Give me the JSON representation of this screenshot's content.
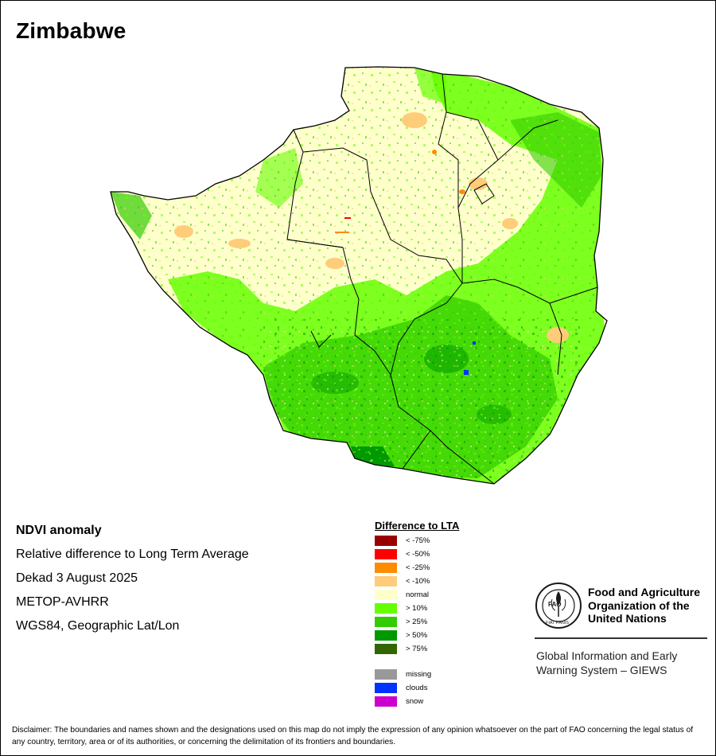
{
  "map": {
    "title": "Zimbabwe"
  },
  "info": {
    "lines": [
      "NDVI anomaly",
      "Relative difference to Long Term Average",
      "Dekad 3 August 2025",
      "METOP-AVHRR",
      "WGS84, Geographic Lat/Lon"
    ]
  },
  "legend": {
    "title": "Difference to LTA",
    "classes": [
      {
        "label": "< -75%",
        "color": "#990000"
      },
      {
        "label": "< -50%",
        "color": "#ff0000"
      },
      {
        "label": "< -25%",
        "color": "#ff8c00"
      },
      {
        "label": "< -10%",
        "color": "#ffcc7a"
      },
      {
        "label": "normal",
        "color": "#ffffcc"
      },
      {
        "label": "> 10%",
        "color": "#66ff00"
      },
      {
        "label": "> 25%",
        "color": "#33cc00"
      },
      {
        "label": "> 50%",
        "color": "#009900"
      },
      {
        "label": "> 75%",
        "color": "#336600"
      }
    ],
    "extras": [
      {
        "label": "missing",
        "color": "#999999"
      },
      {
        "label": "clouds",
        "color": "#0033ff"
      },
      {
        "label": "snow",
        "color": "#cc00cc"
      }
    ]
  },
  "logo": {
    "name_lines": [
      "Food and Agriculture",
      "Organization of the",
      "United Nations"
    ],
    "giews_lines": [
      "Global Information and Early",
      "Warning System – GIEWS"
    ],
    "emblem_letters": "FAO",
    "emblem_motto": "FIAT PANIS"
  },
  "disclaimer": "Disclaimer: The boundaries and names shown and the designations used on this map do not imply the expression of any opinion whatsoever on the part of FAO concerning the legal status of any country, territory, area or of its authorities, or concerning the delimitation of its frontiers and boundaries."
}
